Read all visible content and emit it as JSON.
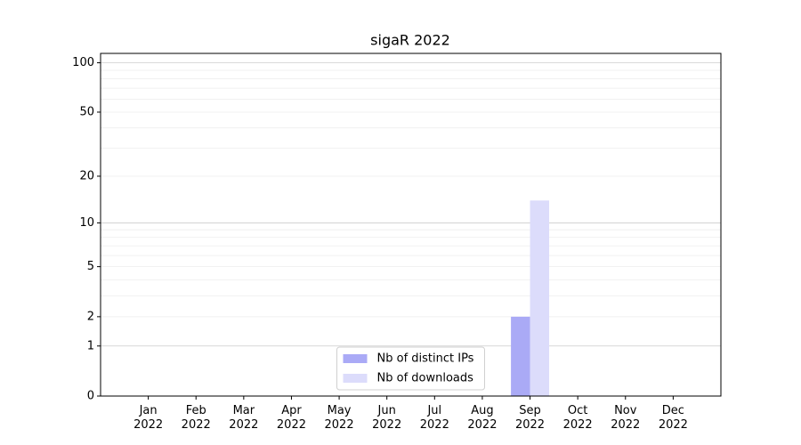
{
  "chart_data": {
    "type": "bar",
    "title": "sigaR 2022",
    "categories": [
      "Jan\n2022",
      "Feb\n2022",
      "Mar\n2022",
      "Apr\n2022",
      "May\n2022",
      "Jun\n2022",
      "Jul\n2022",
      "Aug\n2022",
      "Sep\n2022",
      "Oct\n2022",
      "Nov\n2022",
      "Dec\n2022"
    ],
    "series": [
      {
        "name": "Nb of distinct IPs",
        "color": "#aaaaf6",
        "values": [
          0,
          0,
          0,
          0,
          0,
          0,
          0,
          0,
          2,
          0,
          0,
          0
        ]
      },
      {
        "name": "Nb of downloads",
        "color": "#dcdcfb",
        "values": [
          0,
          0,
          0,
          0,
          0,
          0,
          0,
          0,
          14,
          0,
          0,
          0
        ]
      }
    ],
    "yscale": "log1p",
    "ylim": [
      0,
      114
    ],
    "yticks": [
      0,
      1,
      2,
      5,
      10,
      20,
      50,
      100
    ],
    "minor_yticks": [
      3,
      4,
      6,
      7,
      8,
      9,
      30,
      40,
      60,
      70,
      80,
      90
    ],
    "grid": true,
    "legend": "lower center"
  }
}
